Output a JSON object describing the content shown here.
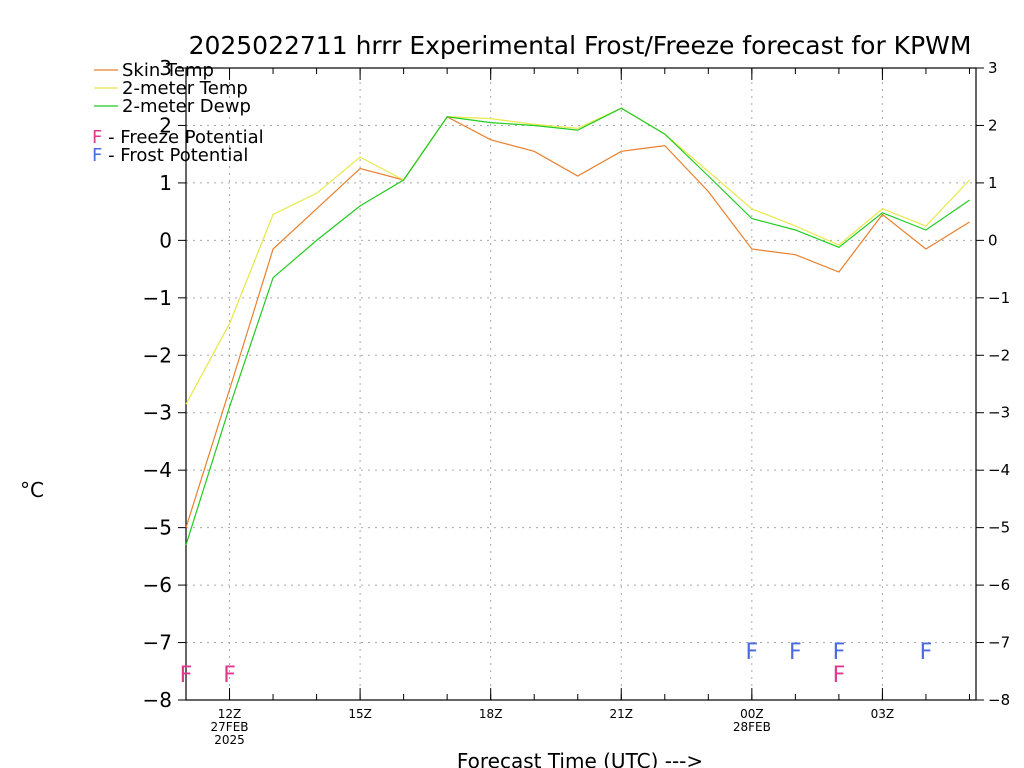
{
  "chart_data": {
    "type": "line",
    "title": "2025022711 hrrr Experimental Frost/Freeze forecast for KPWM",
    "xlabel": "Forecast Time (UTC) --->",
    "ylabel": "°C",
    "ylim": [
      -8,
      3
    ],
    "yticks": [
      -8,
      -7,
      -6,
      -5,
      -4,
      -3,
      -2,
      -1,
      0,
      1,
      2,
      3
    ],
    "grid": true,
    "legend_position": "top-left",
    "x_hours": [
      11,
      12,
      13,
      14,
      15,
      16,
      17,
      18,
      19,
      20,
      21,
      22,
      23,
      24,
      25,
      26,
      27,
      28,
      29
    ],
    "x_ticks": [
      {
        "hour": 12,
        "labels": [
          "12Z",
          "27FEB",
          "2025"
        ]
      },
      {
        "hour": 15,
        "labels": [
          "15Z"
        ]
      },
      {
        "hour": 18,
        "labels": [
          "18Z"
        ]
      },
      {
        "hour": 21,
        "labels": [
          "21Z"
        ]
      },
      {
        "hour": 24,
        "labels": [
          "00Z",
          "28FEB"
        ]
      },
      {
        "hour": 27,
        "labels": [
          "03Z"
        ]
      }
    ],
    "series": [
      {
        "name": "Skin Temp",
        "color": "#e8802e",
        "values": [
          -5.0,
          -2.6,
          -0.15,
          0.55,
          1.25,
          1.05,
          2.15,
          1.75,
          1.55,
          1.12,
          1.55,
          1.65,
          0.85,
          -0.15,
          -0.25,
          -0.55,
          0.45,
          -0.15,
          0.32
        ]
      },
      {
        "name": "2-meter Temp",
        "color": "#e8e84a",
        "values": [
          -2.85,
          -1.45,
          0.45,
          0.82,
          1.45,
          1.05,
          2.15,
          2.12,
          2.02,
          1.95,
          2.3,
          1.85,
          1.2,
          0.55,
          0.25,
          -0.08,
          0.55,
          0.25,
          1.05
        ]
      },
      {
        "name": "2-meter Dewp",
        "color": "#1fcc1f",
        "values": [
          -5.3,
          -2.9,
          -0.65,
          0.0,
          0.6,
          1.05,
          2.15,
          2.05,
          2.0,
          1.92,
          2.3,
          1.85,
          1.12,
          0.38,
          0.18,
          -0.12,
          0.48,
          0.18,
          0.7
        ]
      }
    ],
    "freeze_potential": {
      "label": "F - Freeze Potential",
      "color": "#e0388e",
      "hours": [
        11,
        12,
        26
      ]
    },
    "frost_potential": {
      "label": "F - Frost Potential",
      "color": "#4a6ae0",
      "hours": [
        24,
        25,
        26,
        28
      ]
    },
    "flag_letter": "F"
  }
}
